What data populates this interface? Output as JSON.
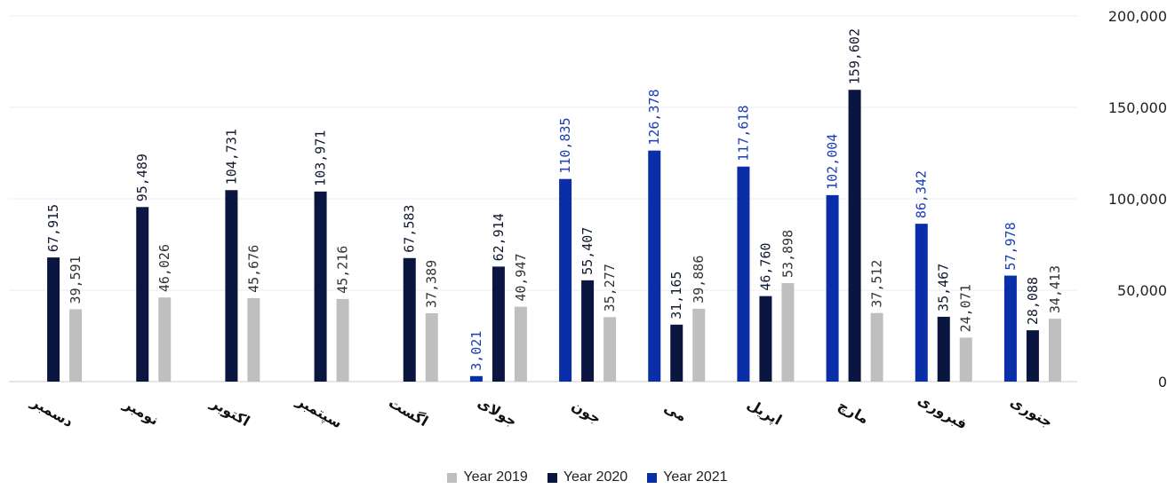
{
  "chart_data": {
    "type": "bar",
    "categories": [
      "دسمبر",
      "نومبر",
      "اکتوبر",
      "سپتمبر",
      "اگست",
      "جولای",
      "جون",
      "می",
      "اپریل",
      "مارچ",
      "فبروری",
      "جنوری"
    ],
    "series": [
      {
        "name": "Year 2021",
        "color": "#0a2da8",
        "values": [
          null,
          null,
          null,
          null,
          null,
          3021,
          110835,
          126378,
          117618,
          102004,
          86342,
          57978
        ],
        "labels": [
          "",
          "",
          "",
          "",
          "",
          "3,021",
          "110,835",
          "126,378",
          "117,618",
          "102,004",
          "86,342",
          "57,978"
        ]
      },
      {
        "name": "Year 2020",
        "color": "#0a1540",
        "values": [
          67915,
          95489,
          104731,
          103971,
          67583,
          62914,
          55407,
          31165,
          46760,
          159602,
          35467,
          28088
        ],
        "labels": [
          "67,915",
          "95,489",
          "104,731",
          "103,971",
          "67,583",
          "62,914",
          "55,407",
          "31,165",
          "46,760",
          "159,602",
          "35,467",
          "28,088"
        ]
      },
      {
        "name": "Year 2019",
        "color": "#c0bfbf",
        "values": [
          39591,
          46026,
          45676,
          45216,
          37389,
          40947,
          35277,
          39886,
          53898,
          37512,
          24071,
          34413
        ],
        "labels": [
          "39,591",
          "46,026",
          "45,676",
          "45,216",
          "37,389",
          "40,947",
          "35,277",
          "39,886",
          "53,898",
          "37,512",
          "24,071",
          "34,413"
        ]
      }
    ],
    "y_axis": {
      "position": "right",
      "ylim": [
        0,
        200000
      ],
      "ticks": [
        0,
        50000,
        100000,
        150000,
        200000
      ],
      "tick_labels": [
        "0",
        "50,000",
        "100,000",
        "150,000",
        "200,000"
      ]
    },
    "grid": true
  },
  "legend": [
    {
      "label": "Year 2019",
      "color": "#c0bfbf"
    },
    {
      "label": "Year 2020",
      "color": "#0a1540"
    },
    {
      "label": "Year 2021",
      "color": "#0a2da8"
    }
  ]
}
